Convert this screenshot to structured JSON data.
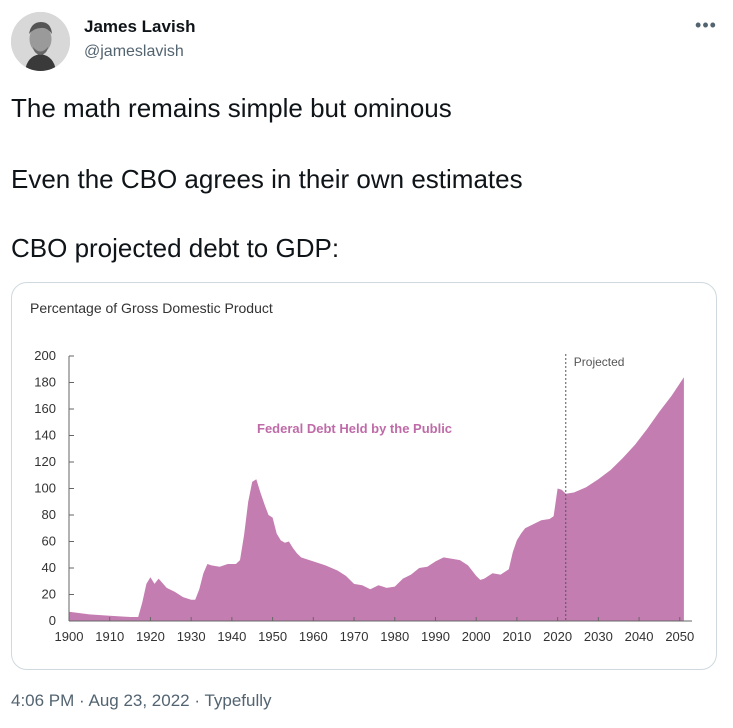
{
  "author": {
    "name": "James Lavish",
    "handle": "@jameslavish",
    "avatar_icon": "user-photo-icon"
  },
  "menu_icon": "more-options-icon",
  "tweet": {
    "lines": [
      "The math remains simple but ominous",
      "Even the CBO agrees in their own estimates",
      "CBO projected debt to GDP:"
    ]
  },
  "chart_data": {
    "type": "area",
    "title": "Percentage of Gross Domestic Product",
    "series": [
      {
        "name": "Federal Debt Held by the Public",
        "color": "#c47db1",
        "x": [
          1900,
          1905,
          1910,
          1915,
          1916,
          1917,
          1918,
          1919,
          1920,
          1921,
          1922,
          1924,
          1926,
          1928,
          1930,
          1931,
          1932,
          1933,
          1934,
          1935,
          1937,
          1939,
          1941,
          1942,
          1943,
          1944,
          1945,
          1946,
          1947,
          1948,
          1949,
          1950,
          1951,
          1952,
          1953,
          1954,
          1955,
          1956,
          1957,
          1958,
          1960,
          1963,
          1966,
          1968,
          1970,
          1972,
          1974,
          1976,
          1978,
          1980,
          1982,
          1984,
          1986,
          1988,
          1990,
          1992,
          1994,
          1996,
          1998,
          2000,
          2001,
          2002,
          2004,
          2006,
          2008,
          2009,
          2010,
          2011,
          2012,
          2014,
          2016,
          2018,
          2019,
          2020,
          2021,
          2022,
          2024,
          2027,
          2030,
          2033,
          2036,
          2039,
          2042,
          2045,
          2048,
          2051
        ],
        "y": [
          7,
          5,
          4,
          3,
          3,
          3,
          14,
          28,
          33,
          28,
          32,
          25,
          22,
          18,
          16,
          16,
          24,
          36,
          43,
          42,
          41,
          43,
          43,
          46,
          65,
          90,
          105,
          107,
          97,
          88,
          80,
          78,
          66,
          61,
          59,
          60,
          55,
          51,
          48,
          47,
          45,
          42,
          38,
          34,
          28,
          27,
          24,
          27,
          25,
          26,
          32,
          35,
          40,
          41,
          45,
          48,
          47,
          46,
          42,
          34,
          31,
          32,
          36,
          35,
          39,
          52,
          61,
          66,
          70,
          73,
          76,
          77,
          79,
          100,
          99,
          96,
          97,
          101,
          107,
          114,
          123,
          133,
          145,
          158,
          170,
          184
        ]
      }
    ],
    "series_label": "Federal Debt Held by the Public",
    "projected_label": "Projected",
    "projected_start": 2022,
    "x_ticks": [
      1900,
      1910,
      1920,
      1930,
      1940,
      1950,
      1960,
      1970,
      1980,
      1990,
      2000,
      2010,
      2020,
      2030,
      2040,
      2050
    ],
    "y_ticks": [
      0,
      20,
      40,
      60,
      80,
      100,
      120,
      140,
      160,
      180,
      200
    ],
    "xlim": [
      1900,
      2053
    ],
    "ylim": [
      0,
      200
    ],
    "xlabel": "",
    "ylabel": "",
    "grid": false,
    "colors": {
      "fill": "#c47db1",
      "label": "#bf6ba8",
      "axis": "#666666"
    }
  },
  "footer": {
    "time": "4:06 PM",
    "sep1": " · ",
    "date": "Aug 23, 2022",
    "sep2": " · ",
    "source": "Typefully"
  }
}
